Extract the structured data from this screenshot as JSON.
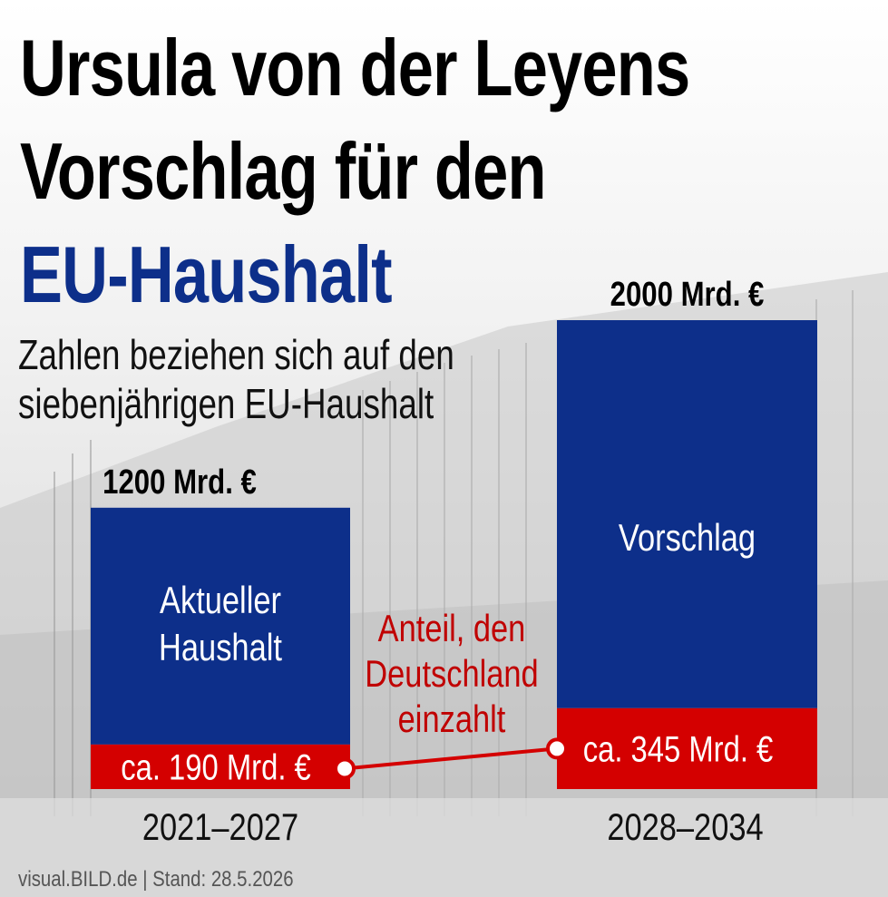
{
  "title": {
    "line1": "Ursula von der Leyens",
    "line2": "Vorschlag für den",
    "line3": "EU-Haushalt"
  },
  "subtitle": {
    "line1": "Zahlen beziehen sich auf den",
    "line2": "siebenjährigen EU-Haushalt"
  },
  "connector_label": [
    "Anteil, den",
    "Deutschland",
    "einzahlt"
  ],
  "footer": "visual.BILD.de | Stand: 28.5.2026",
  "colors": {
    "bar_total": "#0d2f8a",
    "bar_share": "#d40000",
    "title_accent": "#0d2f8a",
    "annotation": "#c00000"
  },
  "chart_data": {
    "type": "bar",
    "stacked": true,
    "categories": [
      "2021–2027",
      "2028–2034"
    ],
    "totals": [
      1200,
      2000
    ],
    "total_labels": [
      "1200 Mrd. €",
      "2000 Mrd. €"
    ],
    "bar_inner_labels": [
      [
        "Aktueller",
        "Haushalt"
      ],
      [
        "Vorschlag"
      ]
    ],
    "series": [
      {
        "name": "Anteil, den Deutschland einzahlt",
        "values": [
          190,
          345
        ],
        "labels": [
          "ca. 190 Mrd. €",
          "ca. 345 Mrd. €"
        ]
      }
    ],
    "ylim": [
      0,
      2000
    ],
    "grid": false,
    "legend": "none"
  }
}
